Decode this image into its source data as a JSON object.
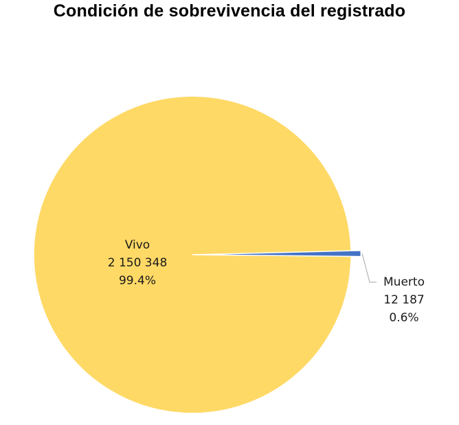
{
  "chart_data": {
    "type": "pie",
    "title": "Condición de sobrevivencia del registrado",
    "slices": [
      {
        "name": "Vivo",
        "value": 2150348,
        "value_label": "2 150 348",
        "percent_label": "99.4%",
        "color": "#FFD966"
      },
      {
        "name": "Muerto",
        "value": 12187,
        "value_label": "12 187",
        "percent_label": "0.6%",
        "color": "#4472C4"
      }
    ],
    "legend": "none",
    "data_labels": "inside for large slice, outside with leader line for small slice"
  }
}
